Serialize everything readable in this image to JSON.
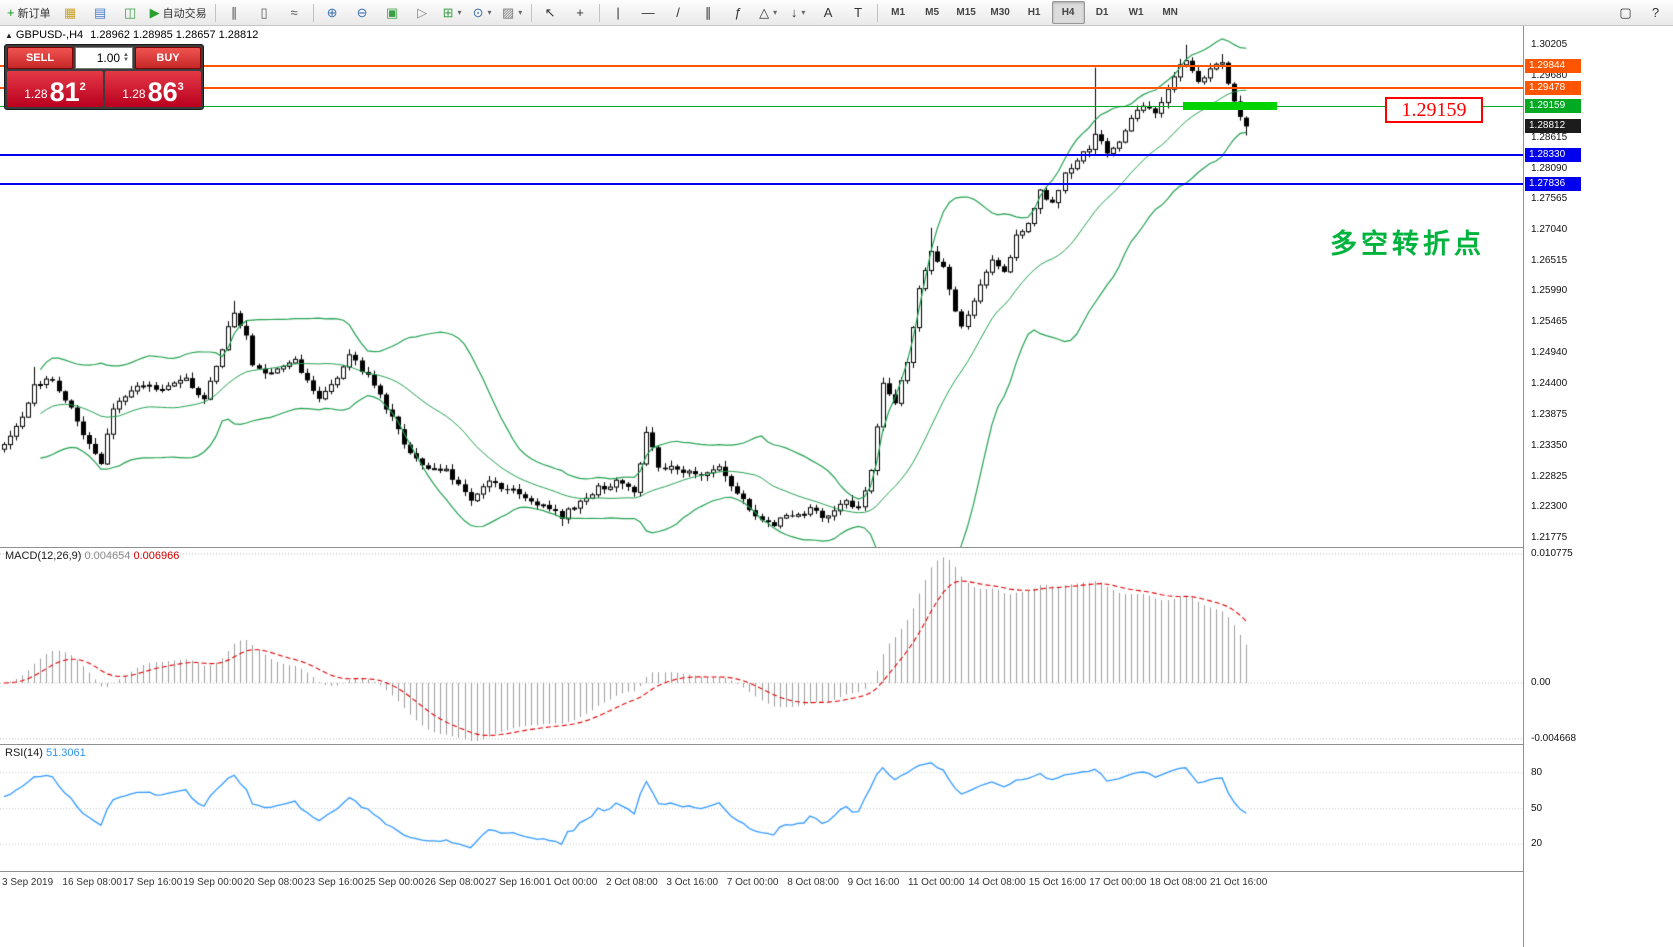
{
  "toolbar": {
    "buttons": [
      {
        "name": "new-order",
        "glyph": "+",
        "color": "#18981d",
        "label": "新订单"
      },
      {
        "name": "market-watch",
        "glyph": "▦",
        "color": "#c9a227"
      },
      {
        "name": "data-window",
        "glyph": "▤",
        "color": "#4a7dc9"
      },
      {
        "name": "navigator",
        "glyph": "◫",
        "color": "#3d9e46"
      },
      {
        "name": "autotrading",
        "glyph": "▶",
        "color": "#2aa12e",
        "label": "自动交易"
      },
      {
        "sep": true
      },
      {
        "name": "bar-chart",
        "glyph": "∥",
        "color": "#555555"
      },
      {
        "name": "candlestick-chart",
        "glyph": "▯",
        "color": "#555555"
      },
      {
        "name": "line-chart",
        "glyph": "≈",
        "color": "#555555"
      },
      {
        "sep": true
      },
      {
        "name": "zoom-in",
        "glyph": "⊕",
        "color": "#3a6fb0"
      },
      {
        "name": "zoom-out",
        "glyph": "⊖",
        "color": "#3a6fb0"
      },
      {
        "name": "auto-scroll",
        "glyph": "▣",
        "color": "#3d9e46"
      },
      {
        "name": "chart-shift",
        "glyph": "▷",
        "color": "#888888"
      },
      {
        "name": "indicators",
        "glyph": "⊞",
        "color": "#3d9e46",
        "dropdown": true
      },
      {
        "name": "periods",
        "glyph": "⊙",
        "color": "#3a6fb0",
        "dropdown": true
      },
      {
        "name": "templates",
        "glyph": "▨",
        "color": "#7a7a7a",
        "dropdown": true
      },
      {
        "sep": true
      },
      {
        "name": "cursor",
        "glyph": "↖",
        "color": "#333333"
      },
      {
        "name": "crosshair",
        "glyph": "+",
        "color": "#333333"
      },
      {
        "sep": true
      },
      {
        "name": "vertical-line",
        "glyph": "|",
        "color": "#333333"
      },
      {
        "name": "horizontal-line",
        "glyph": "—",
        "color": "#333333"
      },
      {
        "name": "trendline",
        "glyph": "/",
        "color": "#333333"
      },
      {
        "name": "equidistant-channel",
        "glyph": "∥",
        "color": "#333333"
      },
      {
        "name": "fibonacci",
        "glyph": "ƒ",
        "color": "#333333"
      },
      {
        "name": "shapes",
        "glyph": "△",
        "color": "#333333",
        "dropdown": true
      },
      {
        "name": "arrows",
        "glyph": "↓",
        "color": "#333333",
        "dropdown": true
      },
      {
        "name": "text",
        "glyph": "A",
        "color": "#333333"
      },
      {
        "name": "text-label",
        "glyph": "T",
        "color": "#333333"
      },
      {
        "sep": true
      }
    ],
    "timeframes": [
      "M1",
      "M5",
      "M15",
      "M30",
      "H1",
      "H4",
      "D1",
      "W1",
      "MN"
    ],
    "active_timeframe": "H4",
    "right_buttons": [
      {
        "name": "fullscreen",
        "glyph": "▢"
      },
      {
        "name": "help",
        "glyph": "?"
      }
    ]
  },
  "header": {
    "symbol": "GBPUSD-,H4",
    "ohlc": "1.28962 1.28985 1.28657 1.28812"
  },
  "trade_panel": {
    "sell_label": "SELL",
    "buy_label": "BUY",
    "volume": "1.00",
    "sell_price": {
      "small": "1.28",
      "big": "81",
      "sup": "2"
    },
    "buy_price": {
      "small": "1.28",
      "big": "86",
      "sup": "3"
    }
  },
  "macd": {
    "label": "MACD(12,26,9)",
    "value_main": "0.004654",
    "value_signal": "0.006966"
  },
  "rsi": {
    "label": "RSI(14)",
    "value": "51.3061"
  },
  "annotations": {
    "price_box": "1.29159",
    "turning_point": "多空转折点"
  },
  "chart_data": {
    "type": "candlestick",
    "symbol": "GBPUSD-",
    "timeframe": "H4",
    "bars": 206,
    "last_bar_ohlc": {
      "open": 1.28962,
      "high": 1.28985,
      "low": 1.28657,
      "close": 1.28812
    },
    "y_axis": {
      "top": 1.30205,
      "bottom": 1.21775
    },
    "close_keyframes": [
      [
        0,
        1.2335
      ],
      [
        3,
        1.2382
      ],
      [
        5,
        1.2438
      ],
      [
        8,
        1.2448
      ],
      [
        10,
        1.2415
      ],
      [
        14,
        1.2338
      ],
      [
        16,
        1.2308
      ],
      [
        18,
        1.2398
      ],
      [
        22,
        1.2442
      ],
      [
        26,
        1.2428
      ],
      [
        30,
        1.2448
      ],
      [
        33,
        1.2412
      ],
      [
        36,
        1.2502
      ],
      [
        38,
        1.2566
      ],
      [
        40,
        1.2522
      ],
      [
        41,
        1.2472
      ],
      [
        44,
        1.2456
      ],
      [
        48,
        1.2478
      ],
      [
        52,
        1.2418
      ],
      [
        55,
        1.2448
      ],
      [
        57,
        1.2492
      ],
      [
        60,
        1.2452
      ],
      [
        63,
        1.2402
      ],
      [
        66,
        1.2338
      ],
      [
        69,
        1.2302
      ],
      [
        73,
        1.2292
      ],
      [
        77,
        1.2242
      ],
      [
        80,
        1.2272
      ],
      [
        84,
        1.2258
      ],
      [
        88,
        1.2238
      ],
      [
        92,
        1.2215
      ],
      [
        95,
        1.2238
      ],
      [
        98,
        1.2262
      ],
      [
        101,
        1.2272
      ],
      [
        104,
        1.2256
      ],
      [
        106,
        1.2362
      ],
      [
        108,
        1.2302
      ],
      [
        111,
        1.2292
      ],
      [
        115,
        1.2282
      ],
      [
        118,
        1.2296
      ],
      [
        121,
        1.2252
      ],
      [
        124,
        1.2218
      ],
      [
        127,
        1.2202
      ],
      [
        130,
        1.2216
      ],
      [
        133,
        1.2226
      ],
      [
        136,
        1.2212
      ],
      [
        139,
        1.2242
      ],
      [
        141,
        1.2228
      ],
      [
        143,
        1.2292
      ],
      [
        145,
        1.2438
      ],
      [
        147,
        1.2412
      ],
      [
        149,
        1.2482
      ],
      [
        151,
        1.2602
      ],
      [
        153,
        1.2668
      ],
      [
        155,
        1.2638
      ],
      [
        157,
        1.2562
      ],
      [
        158,
        1.2536
      ],
      [
        160,
        1.2582
      ],
      [
        163,
        1.2652
      ],
      [
        165,
        1.2632
      ],
      [
        167,
        1.2692
      ],
      [
        169,
        1.2712
      ],
      [
        171,
        1.2772
      ],
      [
        173,
        1.2748
      ],
      [
        175,
        1.2802
      ],
      [
        177,
        1.2826
      ],
      [
        179,
        1.2842
      ],
      [
        180,
        1.2872
      ],
      [
        182,
        1.2832
      ],
      [
        184,
        1.2856
      ],
      [
        186,
        1.2892
      ],
      [
        188,
        1.2916
      ],
      [
        190,
        1.2906
      ],
      [
        192,
        1.2946
      ],
      [
        194,
        1.2986
      ],
      [
        195,
        1.2996
      ],
      [
        197,
        1.2962
      ],
      [
        199,
        1.2976
      ],
      [
        201,
        1.2992
      ],
      [
        202,
        1.2952
      ],
      [
        203,
        1.2922
      ],
      [
        204,
        1.2902
      ],
      [
        205,
        1.28812
      ]
    ],
    "wick_overrides": {
      "5": {
        "h": 1.247
      },
      "38": {
        "h": 1.2583
      },
      "92": {
        "l": 1.2198
      },
      "127": {
        "l": 1.2196
      },
      "153": {
        "h": 1.2708
      },
      "180": {
        "h": 1.2982
      },
      "195": {
        "h": 1.3021
      },
      "201": {
        "h": 1.3005
      }
    },
    "horizontal_levels": [
      {
        "name": "resistance-line-1",
        "price": "1.29844",
        "value": 1.29844,
        "color": "#ff5500",
        "width": 2
      },
      {
        "name": "resistance-line-2",
        "price": "1.29478",
        "value": 1.29478,
        "color": "#ff5500",
        "width": 2
      },
      {
        "name": "pivot-line",
        "price": "1.29159",
        "value": 1.29159,
        "color": "#00aa22",
        "width": 1,
        "highlight": true
      },
      {
        "name": "support-line-1",
        "price": "1.28330",
        "value": 1.2833,
        "color": "#0000ee",
        "width": 2
      },
      {
        "name": "support-line-2",
        "price": "1.27836",
        "value": 1.27836,
        "color": "#0000ee",
        "width": 2
      }
    ],
    "current_price": {
      "price": "1.28812",
      "value": 1.28812,
      "color": "#1c1c1c"
    },
    "price_ticks": [
      "1.30205",
      "1.29680",
      "1.28615",
      "1.28090",
      "1.27565",
      "1.27040",
      "1.26515",
      "1.25990",
      "1.25465",
      "1.24940",
      "1.24400",
      "1.23875",
      "1.23350",
      "1.22825",
      "1.22300",
      "1.21775"
    ],
    "time_labels": [
      "3 Sep 2019",
      "16 Sep 08:00",
      "17 Sep 16:00",
      "19 Sep 00:00",
      "20 Sep 08:00",
      "23 Sep 16:00",
      "25 Sep 00:00",
      "26 Sep 08:00",
      "27 Sep 16:00",
      "1 Oct 00:00",
      "2 Oct 08:00",
      "3 Oct 16:00",
      "7 Oct 00:00",
      "8 Oct 08:00",
      "9 Oct 16:00",
      "11 Oct 00:00",
      "14 Oct 08:00",
      "15 Oct 16:00",
      "17 Oct 00:00",
      "18 Oct 08:00",
      "21 Oct 16:00"
    ],
    "indicators": {
      "bollinger": {
        "label": "Bollinger Bands",
        "period": 20,
        "deviation": 2
      },
      "macd": {
        "period_fast": 12,
        "period_slow": 26,
        "period_signal": 9,
        "value_main": 0.004654,
        "value_signal": 0.006966,
        "ticks": [
          {
            "label": "0.010775",
            "value": 0.010775
          },
          {
            "label": "0.00",
            "value": 0
          },
          {
            "label": "-0.004668",
            "value": -0.004668
          }
        ]
      },
      "rsi": {
        "period": 14,
        "value": 51.3061,
        "ticks": [
          {
            "label": "80",
            "value": 80
          },
          {
            "label": "50",
            "value": 50
          },
          {
            "label": "20",
            "value": 20
          }
        ]
      }
    },
    "colors": {
      "bollinger": "#23a050",
      "macd_histogram": "#9e9e9e",
      "macd_signal": "#e00000",
      "rsi_line": "#3399ff",
      "candle_up": "#ffffff",
      "candle_down": "#000000",
      "candle_outline": "#000000"
    }
  }
}
